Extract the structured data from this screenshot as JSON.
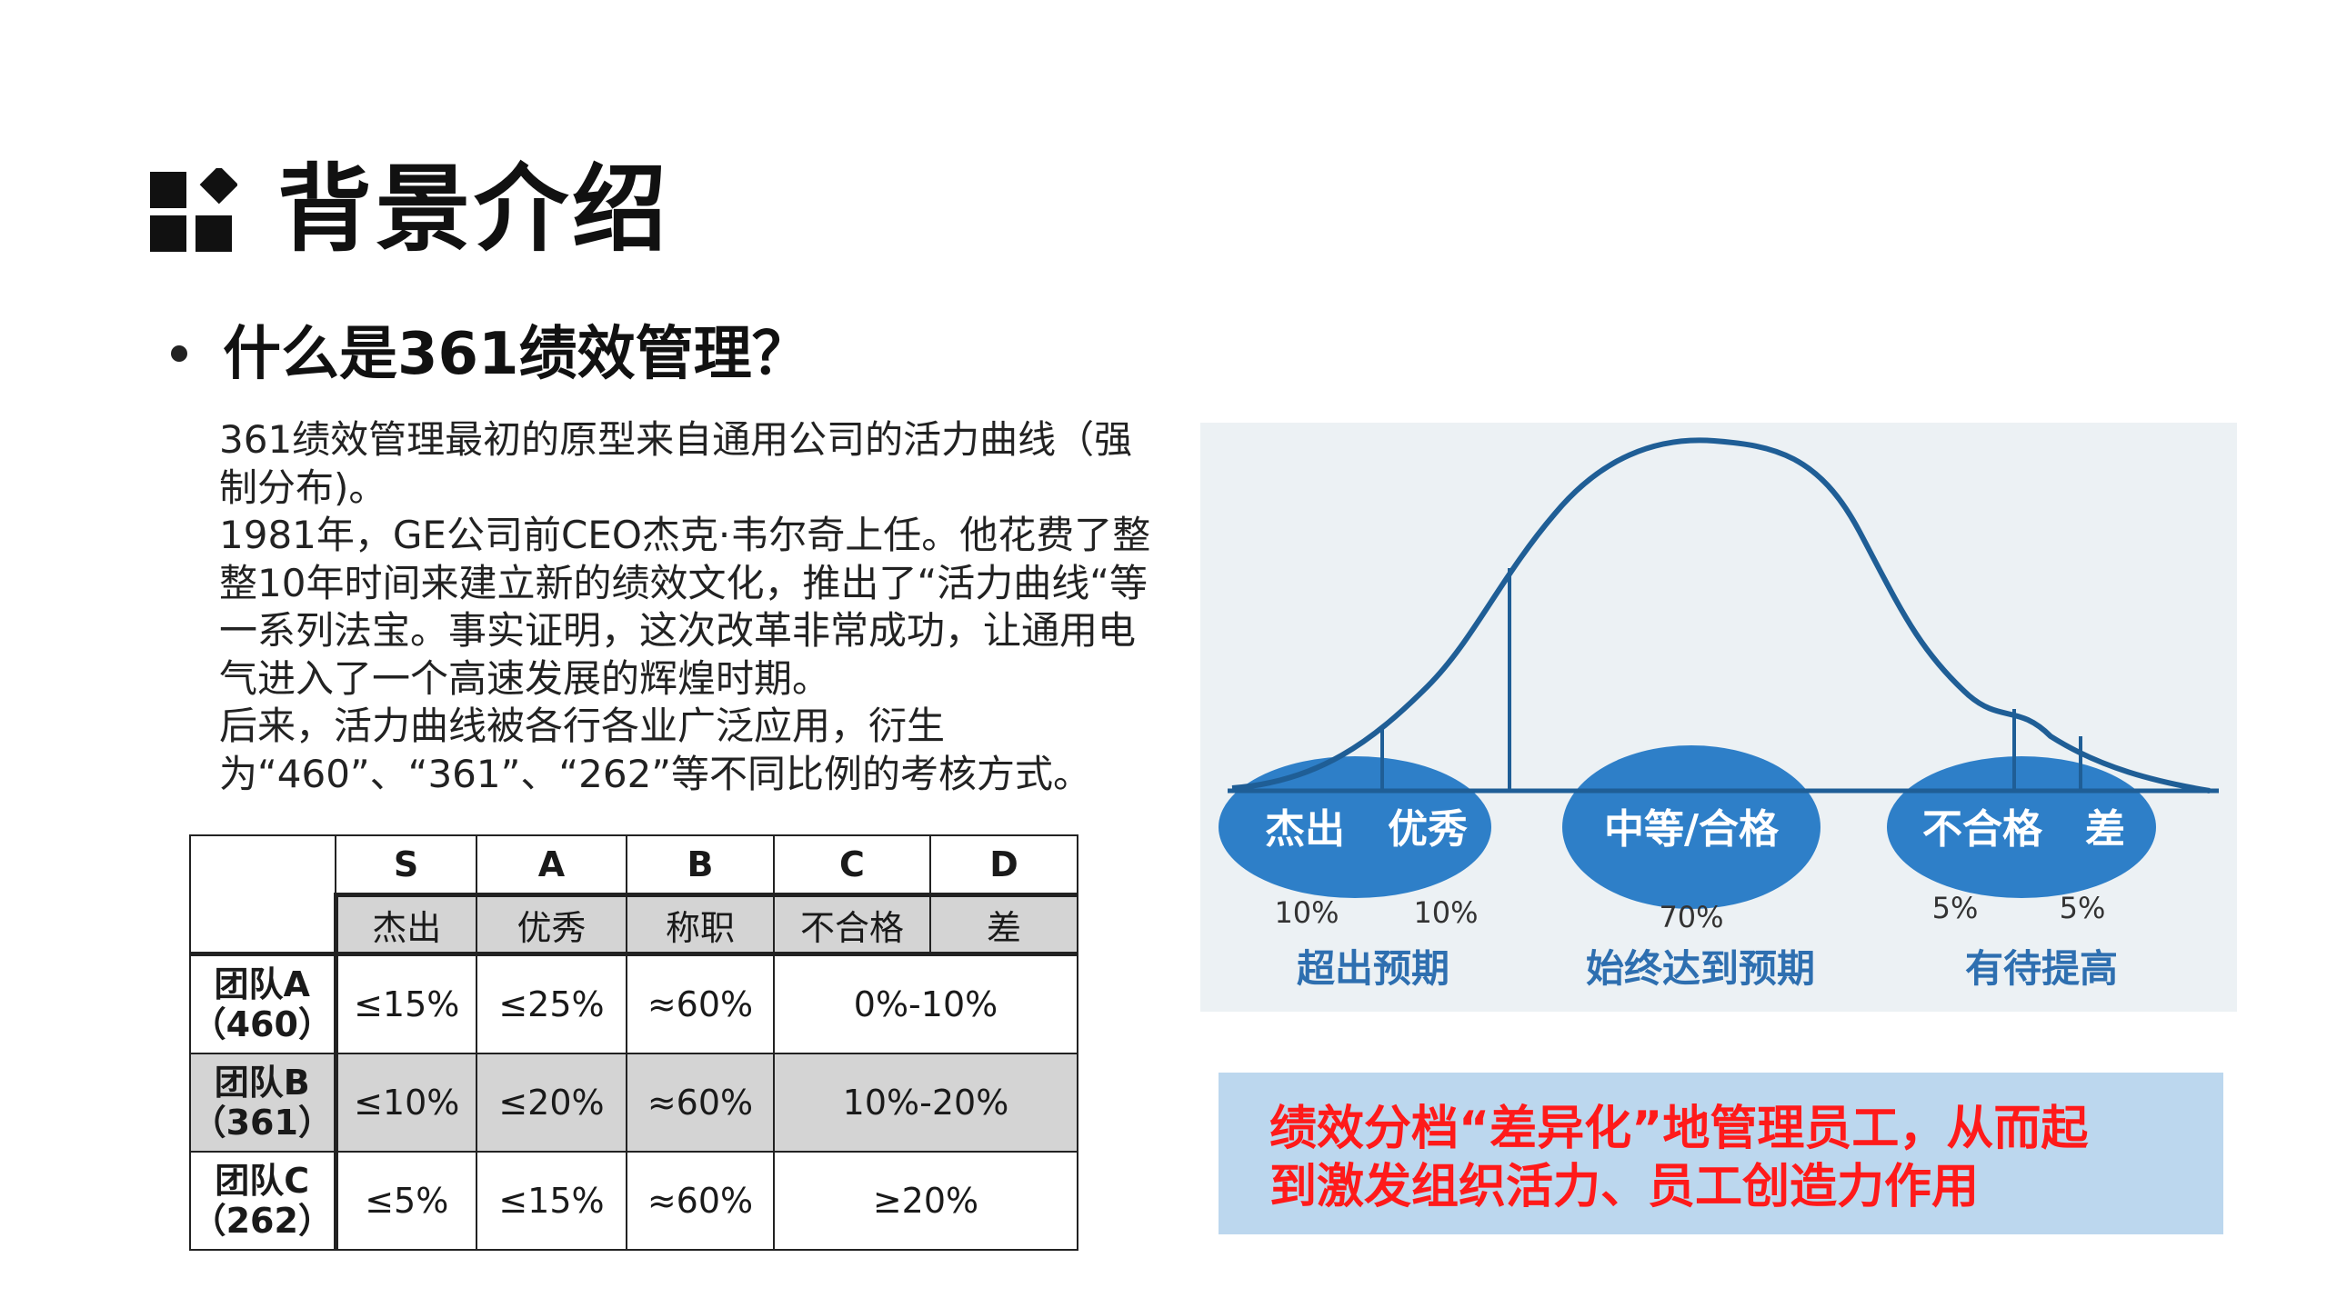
{
  "header": {
    "title": "背景介绍",
    "icon": "squares-diamond-icon"
  },
  "section": {
    "heading": "什么是361绩效管理？"
  },
  "body": {
    "p1": "361绩效管理最初的原型来自通用公司的活力曲线（强制分布)。",
    "p2": "1981年，GE公司前CEO杰克·韦尔奇上任。他花费了整整10年时间来建立新的绩效文化，推出了“活力曲线“等一系列法宝。事实证明，这次改革非常成功，让通用电气进入了一个高速发展的辉煌时期。",
    "p3": "后来，活力曲线被各行各业广泛应用，衍生为“460”、“361”、“262”等不同比例的考核方式。"
  },
  "table": {
    "grades": [
      "S",
      "A",
      "B",
      "C",
      "D"
    ],
    "grade_names": [
      "杰出",
      "优秀",
      "称职",
      "不合格",
      "差"
    ],
    "rows": [
      {
        "team": "团队A",
        "code": "（460）",
        "s": "≤15%",
        "a": "≤25%",
        "b": "≈60%",
        "cd": "0%-10%"
      },
      {
        "team": "团队B",
        "code": "（361）",
        "s": "≤10%",
        "a": "≤20%",
        "b": "≈60%",
        "cd": "10%-20%"
      },
      {
        "team": "团队C",
        "code": "（262）",
        "s": "≤5%",
        "a": "≤15%",
        "b": "≈60%",
        "cd": "≥20%"
      }
    ]
  },
  "chart_data": {
    "type": "area",
    "title": "",
    "groups": [
      {
        "label": "超出预期",
        "ellipse_label_1": "杰出",
        "ellipse_label_2": "优秀",
        "pct_1": "10%",
        "pct_2": "10%"
      },
      {
        "label": "始终达到预期",
        "ellipse_label_1": "中等/合格",
        "pct_1": "70%"
      },
      {
        "label": "有待提高",
        "ellipse_label_1": "不合格",
        "ellipse_label_2": "差",
        "pct_1": "5%",
        "pct_2": "5%"
      }
    ],
    "colors": {
      "curve": "#1f5e96",
      "ellipse": "#2e7fc8",
      "label": "#2e6fb0",
      "background": "#ecf1f4"
    }
  },
  "callout": {
    "line1": "绩效分档“差异化”地管理员工，从而起",
    "line2": "到激发组织活力、员工创造力作用",
    "color": "#ff1a1a"
  }
}
